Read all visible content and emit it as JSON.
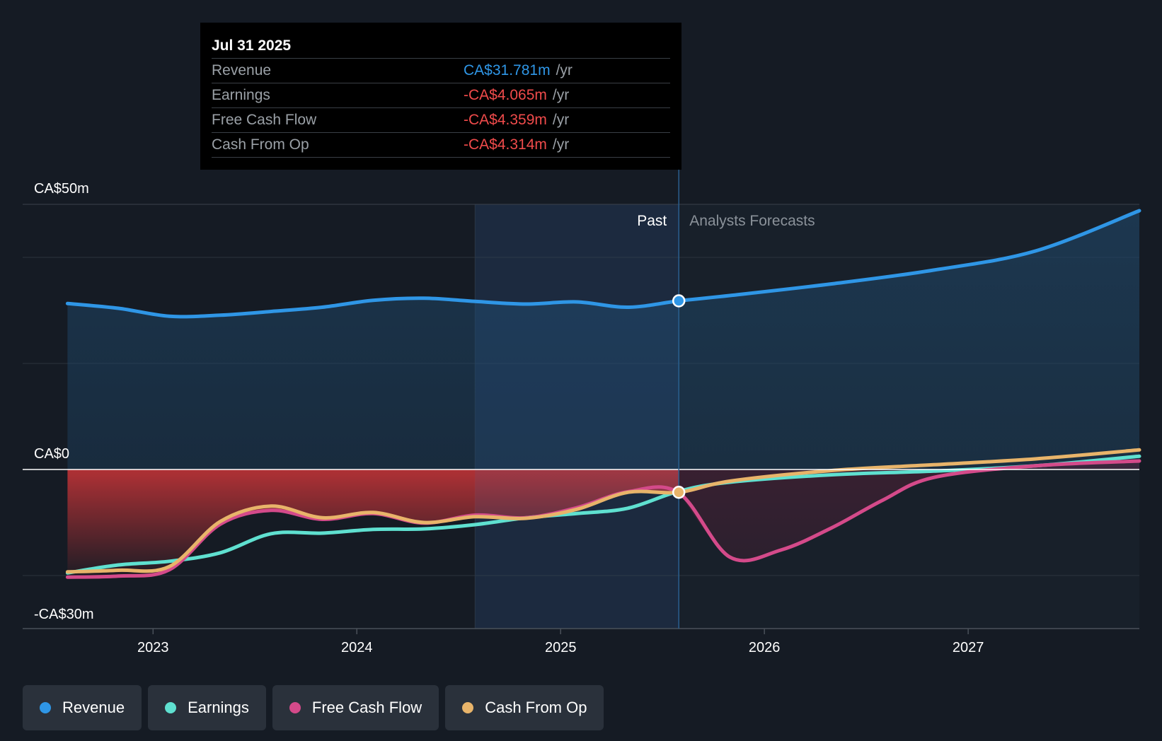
{
  "colors": {
    "background": "#151b24",
    "revenue": "#2f96e6",
    "earnings": "#5fe0d0",
    "free_cash_flow": "#d44a8a",
    "cash_from_op": "#e8b46a",
    "negative_value": "#f04b4b",
    "positive_value": "#2f96e6"
  },
  "tooltip": {
    "date": "Jul 31 2025",
    "rows": [
      {
        "label": "Revenue",
        "value": "CA$31.781m",
        "unit": "/yr",
        "color": "#2f96e6"
      },
      {
        "label": "Earnings",
        "value": "-CA$4.065m",
        "unit": "/yr",
        "color": "#f04b4b"
      },
      {
        "label": "Free Cash Flow",
        "value": "-CA$4.359m",
        "unit": "/yr",
        "color": "#f04b4b"
      },
      {
        "label": "Cash From Op",
        "value": "-CA$4.314m",
        "unit": "/yr",
        "color": "#f04b4b"
      }
    ]
  },
  "legend": [
    {
      "label": "Revenue",
      "color": "#2f96e6",
      "icon": "revenue-dot-icon"
    },
    {
      "label": "Earnings",
      "color": "#5fe0d0",
      "icon": "earnings-dot-icon"
    },
    {
      "label": "Free Cash Flow",
      "color": "#d44a8a",
      "icon": "free-cash-flow-dot-icon"
    },
    {
      "label": "Cash From Op",
      "color": "#e8b46a",
      "icon": "cash-from-op-dot-icon"
    }
  ],
  "chart_data": {
    "type": "line",
    "title": "",
    "xlabel": "",
    "ylabel": "",
    "ylim": [
      -30,
      50
    ],
    "xlim": [
      2022.36,
      2027.84
    ],
    "x_ticks": [
      2023,
      2024,
      2025,
      2026,
      2027
    ],
    "x_tick_labels": [
      "2023",
      "2024",
      "2025",
      "2026",
      "2027"
    ],
    "y_tick_labels": [
      {
        "value": 50,
        "label": "CA$50m"
      },
      {
        "value": 0,
        "label": "CA$0"
      },
      {
        "value": -30,
        "label": "-CA$30m"
      }
    ],
    "gridlines": [
      50,
      40,
      20,
      0,
      -20,
      -30
    ],
    "divider_x": 2025.58,
    "shaded_region": [
      2024.58,
      2025.58
    ],
    "region_labels": {
      "past": "Past",
      "forecast": "Analysts Forecasts"
    },
    "highlight_x": 2025.58,
    "series": [
      {
        "name": "Revenue",
        "key": "revenue",
        "points": [
          [
            2022.58,
            31.3
          ],
          [
            2022.83,
            30.4
          ],
          [
            2023.08,
            28.9
          ],
          [
            2023.33,
            29.1
          ],
          [
            2023.58,
            29.8
          ],
          [
            2023.83,
            30.6
          ],
          [
            2024.08,
            31.9
          ],
          [
            2024.33,
            32.3
          ],
          [
            2024.58,
            31.7
          ],
          [
            2024.83,
            31.2
          ],
          [
            2025.08,
            31.6
          ],
          [
            2025.33,
            30.6
          ],
          [
            2025.58,
            31.8
          ],
          [
            2025.83,
            32.8
          ],
          [
            2026.33,
            35.0
          ],
          [
            2026.83,
            37.6
          ],
          [
            2027.33,
            41.2
          ],
          [
            2027.84,
            48.8
          ]
        ]
      },
      {
        "name": "Earnings",
        "key": "earnings",
        "points": [
          [
            2022.58,
            -19.5
          ],
          [
            2022.83,
            -18.0
          ],
          [
            2023.08,
            -17.3
          ],
          [
            2023.33,
            -15.7
          ],
          [
            2023.58,
            -12.1
          ],
          [
            2023.83,
            -12.0
          ],
          [
            2024.08,
            -11.3
          ],
          [
            2024.33,
            -11.2
          ],
          [
            2024.58,
            -10.4
          ],
          [
            2024.83,
            -9.1
          ],
          [
            2025.08,
            -8.3
          ],
          [
            2025.33,
            -7.3
          ],
          [
            2025.58,
            -4.1
          ],
          [
            2025.83,
            -2.4
          ],
          [
            2026.33,
            -1.0
          ],
          [
            2026.83,
            -0.3
          ],
          [
            2027.33,
            0.7
          ],
          [
            2027.84,
            2.5
          ]
        ]
      },
      {
        "name": "Free Cash Flow",
        "key": "free_cash_flow",
        "points": [
          [
            2022.58,
            -20.3
          ],
          [
            2022.83,
            -20.1
          ],
          [
            2023.08,
            -18.9
          ],
          [
            2023.33,
            -10.3
          ],
          [
            2023.58,
            -7.7
          ],
          [
            2023.83,
            -9.4
          ],
          [
            2024.08,
            -8.3
          ],
          [
            2024.33,
            -10.1
          ],
          [
            2024.58,
            -8.6
          ],
          [
            2024.83,
            -9.1
          ],
          [
            2025.08,
            -7.2
          ],
          [
            2025.33,
            -4.2
          ],
          [
            2025.58,
            -4.4
          ],
          [
            2025.83,
            -16.5
          ],
          [
            2026.08,
            -15.2
          ],
          [
            2026.33,
            -11.0
          ],
          [
            2026.58,
            -5.8
          ],
          [
            2026.83,
            -1.5
          ],
          [
            2027.33,
            0.7
          ],
          [
            2027.84,
            1.6
          ]
        ]
      },
      {
        "name": "Cash From Op",
        "key": "cash_from_op",
        "points": [
          [
            2022.58,
            -19.3
          ],
          [
            2022.83,
            -19.0
          ],
          [
            2023.08,
            -18.3
          ],
          [
            2023.33,
            -9.8
          ],
          [
            2023.58,
            -6.9
          ],
          [
            2023.83,
            -9.1
          ],
          [
            2024.08,
            -8.1
          ],
          [
            2024.33,
            -10.0
          ],
          [
            2024.58,
            -8.9
          ],
          [
            2024.83,
            -9.2
          ],
          [
            2025.08,
            -7.5
          ],
          [
            2025.33,
            -4.3
          ],
          [
            2025.58,
            -4.3
          ],
          [
            2025.83,
            -2.2
          ],
          [
            2026.33,
            -0.2
          ],
          [
            2026.83,
            0.9
          ],
          [
            2027.33,
            2.0
          ],
          [
            2027.84,
            3.7
          ]
        ]
      }
    ]
  }
}
